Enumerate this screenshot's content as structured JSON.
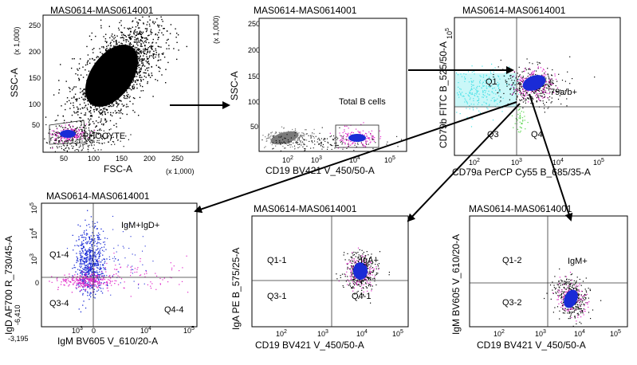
{
  "panels": {
    "p1": {
      "title": "MAS0614-MAS0614001",
      "xlabel": "FSC-A",
      "ylabel": "SSC-A",
      "x_mult": "(x 1,000)",
      "y_mult": "(x 1,000)",
      "xticks": [
        "50",
        "100",
        "150",
        "200",
        "250"
      ],
      "yticks": [
        "50",
        "100",
        "150",
        "200",
        "250"
      ],
      "gate": "PHOCYTE"
    },
    "p2": {
      "title": "MAS0614-MAS0614001",
      "xlabel": "CD19 BV421 V_450/50-A",
      "ylabel": "SSC-A",
      "y_mult": "(x 1,000)",
      "yticks": [
        "50",
        "100",
        "150",
        "200",
        "250"
      ],
      "xticks": [
        "10",
        "10",
        "10",
        "10",
        "10"
      ],
      "xtick_exp": [
        "2",
        "3",
        "4",
        "5",
        ""
      ],
      "gate": "Total B cells"
    },
    "p3": {
      "title": "MAS0614-MAS0614001",
      "xlabel": "CD79a PerCP Cy55 B_685/35-A",
      "ylabel": "CD79b FITC B_525/50-A",
      "ticks": [
        "10",
        "10",
        "10",
        "10"
      ],
      "tick_exp": [
        "2",
        "3",
        "4",
        "5"
      ],
      "q1": "Q1",
      "q2": "79a/b+",
      "q3": "Q3",
      "q4": "Q4"
    },
    "p4": {
      "title": "MAS0614-MAS0614001",
      "xlabel": "IgM BV605 V_610/20-A",
      "ylabel": "IgD AF700 R_730/45-A",
      "ticks": [
        "10",
        "10",
        "10",
        "10"
      ],
      "tick_exp": [
        "3",
        "4",
        "5",
        "5"
      ],
      "xmin": "-3,195",
      "xzero": "0",
      "ymin": "-6,410",
      "yzero": "0",
      "q1": "Q1-4",
      "q2": "IgM+IgD+",
      "q3": "Q3-4",
      "q4": "Q4-4"
    },
    "p5": {
      "title": "MAS0614-MAS0614001",
      "xlabel": "CD19 BV421 V_450/50-A",
      "ylabel": "IgA PE B_575/25-A",
      "ticks": [
        "10",
        "10",
        "10",
        "10"
      ],
      "tick_exp": [
        "2",
        "3",
        "4",
        "5"
      ],
      "q1": "Q1-1",
      "q2": "IgA+",
      "q3": "Q3-1",
      "q4": "Q4-1"
    },
    "p6": {
      "title": "MAS0614-MAS0614001",
      "xlabel": "CD19 BV421 V_450/50-A",
      "ylabel": "IgM BV605 V_610/20-A",
      "ticks": [
        "10",
        "10",
        "10",
        "10"
      ],
      "tick_exp": [
        "2",
        "3",
        "4",
        "5"
      ],
      "q1": "Q1-2",
      "q2": "IgM+",
      "q3": "Q3-2",
      "q4": ""
    }
  },
  "colors": {
    "event_black": "#000000",
    "event_blue": "#1a2bd6",
    "event_magenta": "#e026c8",
    "event_cyan": "#46e0e6",
    "event_green": "#56d44a",
    "event_grey": "#888888"
  }
}
